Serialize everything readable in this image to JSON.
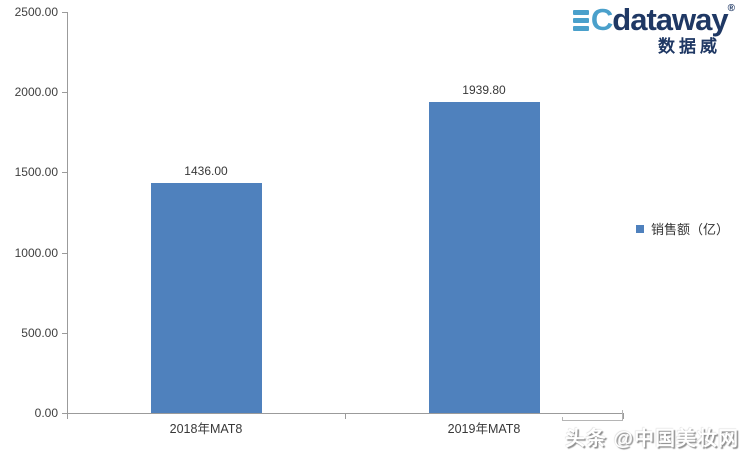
{
  "chart_data": {
    "type": "bar",
    "title": "",
    "categories": [
      "2018年MAT8",
      "2019年MAT8"
    ],
    "series": [
      {
        "name": "销售额（亿）",
        "values": [
          1436.0,
          1939.8
        ],
        "color": "#4F81BD"
      }
    ],
    "value_labels": [
      "1436.00",
      "1939.80"
    ],
    "ylim": [
      0,
      2500
    ],
    "y_ticks": [
      0,
      500,
      1000,
      1500,
      2000,
      2500
    ],
    "y_tick_labels": [
      "0.00",
      "500.00",
      "1000.00",
      "1500.00",
      "2000.00",
      "2500.00"
    ],
    "grid": false,
    "legend_position": "right",
    "axis_color": "#9B9B9B",
    "label_color": "#383838"
  },
  "legend": {
    "label": "销售额（亿）",
    "swatch_color": "#4F81BD"
  },
  "logo": {
    "c": "C",
    "name": "dataway",
    "registered": "®",
    "subtitle": "数据威",
    "ec_color": "#4AA0CB",
    "name_color": "#1F3864"
  },
  "watermark": {
    "text": "头条 @中国美妆网"
  }
}
